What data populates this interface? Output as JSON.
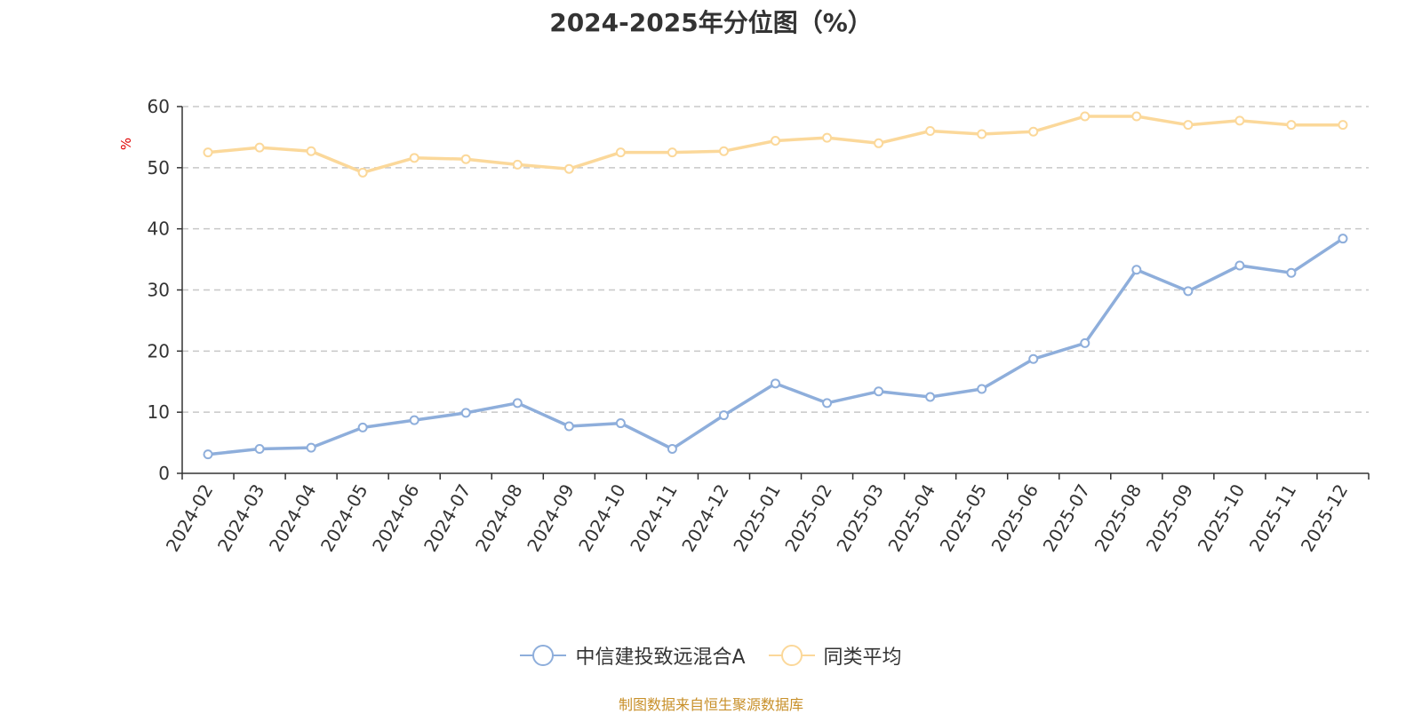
{
  "chart_data": {
    "type": "line",
    "title": "2024-2025年分位图（%）",
    "ylabel": "%",
    "xlabel": "",
    "ylim": [
      0,
      60
    ],
    "yticks": [
      0,
      10,
      20,
      30,
      40,
      50,
      60
    ],
    "grid": "horizontal-dashed",
    "legend_position": "bottom-center",
    "categories": [
      "2024-02",
      "2024-03",
      "2024-04",
      "2024-05",
      "2024-06",
      "2024-07",
      "2024-08",
      "2024-09",
      "2024-10",
      "2024-11",
      "2024-12",
      "2025-01",
      "2025-02",
      "2025-03",
      "2025-04",
      "2025-05",
      "2025-06",
      "2025-07",
      "2025-08",
      "2025-09",
      "2025-10",
      "2025-11",
      "2025-12"
    ],
    "series": [
      {
        "name": "中信建投致远混合A",
        "color": "#8eaedb",
        "values": [
          3.1,
          4.0,
          4.2,
          7.5,
          8.7,
          9.9,
          11.5,
          7.7,
          8.2,
          4.0,
          9.5,
          14.7,
          11.5,
          13.4,
          12.5,
          13.8,
          18.7,
          21.3,
          33.3,
          29.8,
          34.0,
          32.8,
          38.4
        ]
      },
      {
        "name": "同类平均",
        "color": "#fbd89a",
        "values": [
          52.5,
          53.3,
          52.7,
          49.2,
          51.6,
          51.4,
          50.5,
          49.8,
          52.5,
          52.5,
          52.7,
          54.4,
          54.9,
          54.0,
          56.0,
          55.5,
          55.9,
          58.4,
          58.4,
          57.0,
          57.7,
          57.0,
          57.0
        ]
      }
    ]
  },
  "source": "制图数据来自恒生聚源数据库"
}
